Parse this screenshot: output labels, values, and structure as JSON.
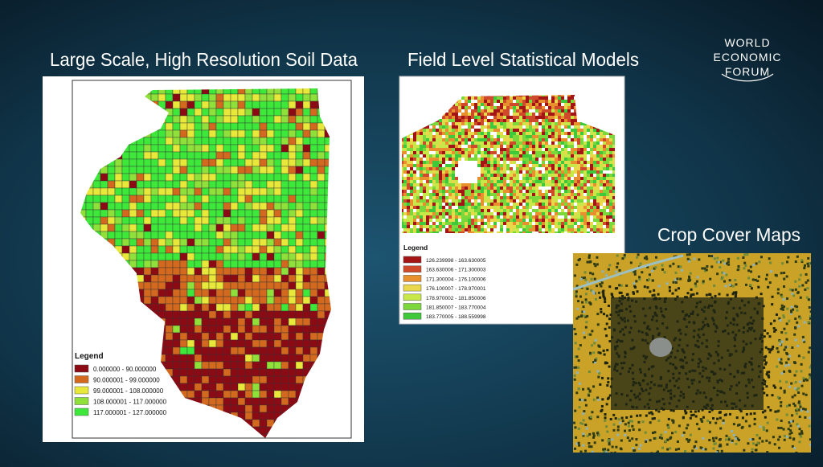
{
  "slide": {
    "logo": [
      "WORLD",
      "ECONOMIC",
      "FORUM"
    ],
    "panels": [
      {
        "title": "Large Scale, High Resolution Soil Data",
        "legend": {
          "title": "Legend",
          "items": [
            {
              "label": "0.000000 - 90.000000",
              "color": "#8b0a14"
            },
            {
              "label": "90.000001 - 99.000000",
              "color": "#d2691e"
            },
            {
              "label": "99.000001 - 108.000000",
              "color": "#e8e83a"
            },
            {
              "label": "108.000001 - 117.000000",
              "color": "#8fe03a"
            },
            {
              "label": "117.000001 - 127.000000",
              "color": "#3ee83a"
            }
          ]
        }
      },
      {
        "title": "Field Level Statistical Models",
        "legend": {
          "title": "Legend",
          "items": [
            {
              "label": "126.239998 - 163.630005",
              "color": "#a31515"
            },
            {
              "label": "163.630006 - 171.300003",
              "color": "#cf4a2a"
            },
            {
              "label": "171.300004 - 176.100006",
              "color": "#e8902e"
            },
            {
              "label": "176.100007 - 178.970001",
              "color": "#e8d84a"
            },
            {
              "label": "178.970002 - 181.850006",
              "color": "#c8e84a"
            },
            {
              "label": "181.850007 - 183.770004",
              "color": "#7cd83a"
            },
            {
              "label": "183.770005 - 188.559998",
              "color": "#3ec83a"
            }
          ]
        }
      },
      {
        "title": "Crop Cover Maps"
      }
    ]
  }
}
